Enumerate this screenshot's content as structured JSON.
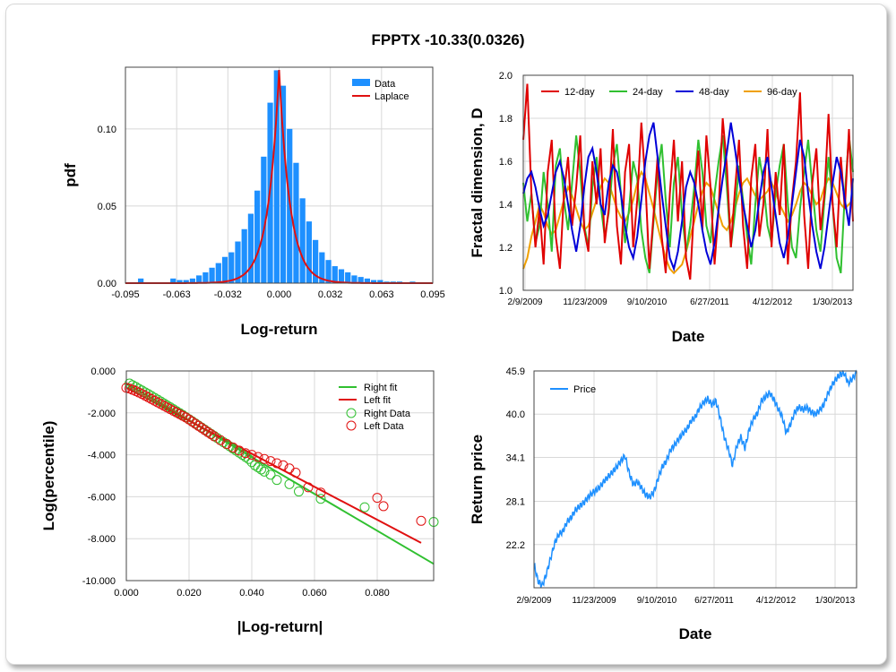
{
  "title": "FPPTX -10.33(0.0326)",
  "colors": {
    "data_bar": "#1e90ff",
    "laplace": "#e01010",
    "d12": "#e00000",
    "d24": "#30c030",
    "d48": "#0000d8",
    "d96": "#f0a000",
    "right": "#30c030",
    "left": "#e01010",
    "price": "#1e90ff",
    "grid": "#d8d8d8"
  },
  "chart_data": [
    {
      "id": "hist",
      "type": "bar",
      "xlabel": "Log-return",
      "ylabel": "pdf",
      "xlim": [
        -0.095,
        0.095
      ],
      "ylim": [
        0,
        0.14
      ],
      "xticks": [
        "-0.095",
        "-0.063",
        "-0.032",
        "0.000",
        "0.032",
        "0.063",
        "0.095"
      ],
      "yticks": [
        "0.00",
        "0.05",
        "0.10"
      ],
      "legend": [
        "Data",
        "Laplace"
      ],
      "legend_position": "top-right",
      "bin_centers": [
        -0.0855,
        -0.0815,
        -0.0775,
        -0.0735,
        -0.0695,
        -0.0655,
        -0.0615,
        -0.0575,
        -0.0535,
        -0.0495,
        -0.0455,
        -0.0415,
        -0.0375,
        -0.0335,
        -0.0295,
        -0.0255,
        -0.0215,
        -0.0175,
        -0.0135,
        -0.0095,
        -0.0055,
        -0.0015,
        0.0025,
        0.0065,
        0.0105,
        0.0145,
        0.0185,
        0.0225,
        0.0265,
        0.0305,
        0.0345,
        0.0385,
        0.0425,
        0.0465,
        0.0505,
        0.0545,
        0.0585,
        0.0625,
        0.0665,
        0.0705,
        0.0745,
        0.0785,
        0.0825
      ],
      "values": [
        0.003,
        0.0,
        0.0,
        0.0,
        0.0,
        0.003,
        0.002,
        0.002,
        0.003,
        0.005,
        0.007,
        0.01,
        0.013,
        0.017,
        0.02,
        0.027,
        0.035,
        0.045,
        0.06,
        0.082,
        0.117,
        0.138,
        0.128,
        0.1,
        0.078,
        0.055,
        0.04,
        0.028,
        0.02,
        0.015,
        0.011,
        0.009,
        0.007,
        0.005,
        0.004,
        0.003,
        0.002,
        0.002,
        0.001,
        0.001,
        0.001,
        0.0,
        0.001
      ],
      "laplace_center": 0.0,
      "laplace_scale": 0.0068
    },
    {
      "id": "fractal",
      "type": "line",
      "xlabel": "Date",
      "ylabel": "Fractal dimension, D",
      "ylim": [
        1.0,
        2.0
      ],
      "yticks": [
        "1.0",
        "1.2",
        "1.4",
        "1.6",
        "1.8",
        "2.0"
      ],
      "xticks": [
        "2/9/2009",
        "11/23/2009",
        "9/10/2010",
        "6/27/2011",
        "4/12/2012",
        "1/30/2013"
      ],
      "legend": [
        "12-day",
        "24-day",
        "48-day",
        "96-day"
      ],
      "legend_position": "top",
      "series": [
        {
          "name": "12-day",
          "values": [
            1.7,
            1.96,
            1.45,
            1.2,
            1.38,
            1.12,
            1.55,
            1.7,
            1.25,
            1.1,
            1.45,
            1.62,
            1.3,
            1.48,
            1.72,
            1.28,
            1.18,
            1.6,
            1.4,
            1.66,
            1.22,
            1.38,
            1.75,
            1.3,
            1.12,
            1.55,
            1.68,
            1.2,
            1.42,
            1.78,
            1.5,
            1.1,
            1.35,
            1.62,
            1.25,
            1.08,
            1.45,
            1.7,
            1.32,
            1.6,
            1.15,
            1.05,
            1.4,
            1.65,
            1.28,
            1.72,
            1.48,
            1.12,
            1.38,
            1.8,
            1.58,
            1.2,
            1.46,
            1.7,
            1.3,
            1.1,
            1.52,
            1.68,
            1.25,
            1.4,
            1.75,
            1.2,
            1.55,
            1.35,
            1.68,
            1.12,
            1.42,
            1.6,
            1.92,
            1.35,
            1.1,
            1.5,
            1.66,
            1.28,
            1.45,
            1.82,
            1.4,
            1.2,
            1.62,
            1.38,
            1.75,
            1.32
          ]
        },
        {
          "name": "24-day",
          "values": [
            1.5,
            1.32,
            1.45,
            1.22,
            1.3,
            1.55,
            1.4,
            1.18,
            1.58,
            1.66,
            1.42,
            1.28,
            1.5,
            1.72,
            1.55,
            1.3,
            1.2,
            1.48,
            1.62,
            1.4,
            1.25,
            1.36,
            1.58,
            1.68,
            1.45,
            1.22,
            1.38,
            1.6,
            1.52,
            1.28,
            1.15,
            1.08,
            1.32,
            1.55,
            1.68,
            1.42,
            1.2,
            1.5,
            1.62,
            1.35,
            1.18,
            1.3,
            1.48,
            1.7,
            1.55,
            1.3,
            1.22,
            1.45,
            1.6,
            1.72,
            1.48,
            1.2,
            1.36,
            1.58,
            1.42,
            1.25,
            1.12,
            1.4,
            1.62,
            1.5,
            1.3,
            1.22,
            1.45,
            1.58,
            1.68,
            1.4,
            1.2,
            1.15,
            1.38,
            1.55,
            1.7,
            1.48,
            1.28,
            1.18,
            1.42,
            1.62,
            1.4,
            1.15,
            1.08,
            1.45,
            1.72,
            1.55
          ]
        },
        {
          "name": "48-day",
          "values": [
            1.45,
            1.52,
            1.55,
            1.48,
            1.38,
            1.3,
            1.35,
            1.45,
            1.55,
            1.6,
            1.52,
            1.4,
            1.28,
            1.18,
            1.3,
            1.48,
            1.62,
            1.66,
            1.55,
            1.4,
            1.35,
            1.5,
            1.58,
            1.55,
            1.45,
            1.3,
            1.2,
            1.15,
            1.25,
            1.42,
            1.6,
            1.72,
            1.78,
            1.62,
            1.45,
            1.3,
            1.15,
            1.1,
            1.18,
            1.32,
            1.48,
            1.55,
            1.5,
            1.4,
            1.28,
            1.18,
            1.12,
            1.22,
            1.38,
            1.52,
            1.64,
            1.78,
            1.66,
            1.52,
            1.4,
            1.3,
            1.2,
            1.28,
            1.42,
            1.55,
            1.62,
            1.48,
            1.35,
            1.22,
            1.15,
            1.25,
            1.4,
            1.55,
            1.7,
            1.62,
            1.45,
            1.3,
            1.18,
            1.1,
            1.2,
            1.35,
            1.5,
            1.62,
            1.55,
            1.42,
            1.3,
            1.52
          ]
        },
        {
          "name": "96-day",
          "values": [
            1.1,
            1.15,
            1.25,
            1.32,
            1.4,
            1.36,
            1.3,
            1.26,
            1.28,
            1.35,
            1.42,
            1.48,
            1.44,
            1.38,
            1.32,
            1.28,
            1.3,
            1.36,
            1.42,
            1.48,
            1.52,
            1.5,
            1.44,
            1.38,
            1.34,
            1.32,
            1.36,
            1.42,
            1.5,
            1.55,
            1.52,
            1.45,
            1.38,
            1.3,
            1.22,
            1.15,
            1.1,
            1.08,
            1.1,
            1.12,
            1.18,
            1.25,
            1.32,
            1.4,
            1.46,
            1.5,
            1.48,
            1.42,
            1.36,
            1.3,
            1.28,
            1.32,
            1.38,
            1.45,
            1.5,
            1.52,
            1.48,
            1.44,
            1.42,
            1.44,
            1.46,
            1.5,
            1.46,
            1.4,
            1.36,
            1.32,
            1.35,
            1.4,
            1.46,
            1.5,
            1.48,
            1.44,
            1.4,
            1.42,
            1.48,
            1.52,
            1.5,
            1.45,
            1.4,
            1.38,
            1.4,
            1.42
          ]
        }
      ]
    },
    {
      "id": "tail",
      "type": "scatter",
      "xlabel": "|Log-return|",
      "ylabel": "Log(percentile)",
      "xlim": [
        0,
        0.098
      ],
      "ylim": [
        -10,
        0
      ],
      "xticks": [
        "0.000",
        "0.020",
        "0.040",
        "0.060",
        "0.080"
      ],
      "yticks": [
        "0.000",
        "-2.000",
        "-4.000",
        "-6.000",
        "-8.000",
        "-10.000"
      ],
      "legend": [
        "Right fit",
        "Left fit",
        "Right Data",
        "Left Data"
      ],
      "legend_position": "top-right",
      "right_fit": {
        "x": [
          0,
          0.098
        ],
        "y": [
          -0.6,
          -9.2
        ]
      },
      "left_fit": {
        "x": [
          0,
          0.094
        ],
        "y": [
          -0.8,
          -8.2
        ]
      },
      "right_data": {
        "x": [
          0.001,
          0.002,
          0.003,
          0.004,
          0.005,
          0.006,
          0.007,
          0.008,
          0.009,
          0.01,
          0.011,
          0.012,
          0.013,
          0.014,
          0.015,
          0.016,
          0.017,
          0.018,
          0.019,
          0.02,
          0.021,
          0.022,
          0.023,
          0.024,
          0.025,
          0.026,
          0.027,
          0.028,
          0.029,
          0.03,
          0.031,
          0.032,
          0.033,
          0.034,
          0.035,
          0.036,
          0.037,
          0.038,
          0.039,
          0.04,
          0.041,
          0.042,
          0.043,
          0.044,
          0.046,
          0.048,
          0.052,
          0.055,
          0.062,
          0.076,
          0.098
        ],
        "y": [
          -0.6,
          -0.68,
          -0.76,
          -0.85,
          -0.93,
          -1.02,
          -1.1,
          -1.19,
          -1.28,
          -1.37,
          -1.46,
          -1.55,
          -1.64,
          -1.73,
          -1.82,
          -1.92,
          -2.01,
          -2.1,
          -2.2,
          -2.3,
          -2.4,
          -2.5,
          -2.6,
          -2.7,
          -2.8,
          -2.9,
          -3.0,
          -3.1,
          -3.2,
          -3.3,
          -3.4,
          -3.5,
          -3.6,
          -3.7,
          -3.8,
          -3.9,
          -4.0,
          -4.1,
          -4.2,
          -4.35,
          -4.5,
          -4.6,
          -4.7,
          -4.8,
          -4.95,
          -5.2,
          -5.4,
          -5.75,
          -6.1,
          -6.5,
          -7.2
        ]
      },
      "left_data": {
        "x": [
          0.0,
          0.001,
          0.002,
          0.003,
          0.004,
          0.005,
          0.006,
          0.007,
          0.008,
          0.009,
          0.01,
          0.011,
          0.012,
          0.013,
          0.014,
          0.015,
          0.016,
          0.017,
          0.018,
          0.019,
          0.02,
          0.021,
          0.022,
          0.023,
          0.024,
          0.025,
          0.026,
          0.027,
          0.028,
          0.03,
          0.032,
          0.034,
          0.036,
          0.038,
          0.04,
          0.042,
          0.044,
          0.046,
          0.048,
          0.05,
          0.052,
          0.054,
          0.058,
          0.062,
          0.08,
          0.082,
          0.094
        ],
        "y": [
          -0.8,
          -0.84,
          -0.9,
          -0.96,
          -1.03,
          -1.1,
          -1.18,
          -1.26,
          -1.34,
          -1.42,
          -1.5,
          -1.58,
          -1.66,
          -1.74,
          -1.82,
          -1.9,
          -1.98,
          -2.06,
          -2.14,
          -2.22,
          -2.32,
          -2.42,
          -2.52,
          -2.62,
          -2.72,
          -2.82,
          -2.92,
          -3.02,
          -3.12,
          -3.3,
          -3.48,
          -3.65,
          -3.8,
          -3.92,
          -4.0,
          -4.1,
          -4.2,
          -4.3,
          -4.4,
          -4.5,
          -4.65,
          -4.85,
          -5.55,
          -5.8,
          -6.05,
          -6.45,
          -7.15
        ]
      }
    },
    {
      "id": "price",
      "type": "line",
      "xlabel": "Date",
      "ylabel": "Return price",
      "ylim": [
        16.3,
        45.9
      ],
      "yticks": [
        "22.2",
        "28.1",
        "34.1",
        "40.0",
        "45.9"
      ],
      "xticks": [
        "2/9/2009",
        "11/23/2009",
        "9/10/2010",
        "6/27/2011",
        "4/12/2012",
        "1/30/2013"
      ],
      "legend": [
        "Price"
      ],
      "legend_position": "top-left",
      "series": [
        {
          "name": "Price",
          "values": [
            19.5,
            17.2,
            16.6,
            18.2,
            20.3,
            22.4,
            23.6,
            24.0,
            25.3,
            25.9,
            26.9,
            27.4,
            27.9,
            28.6,
            29.2,
            29.6,
            30.1,
            30.9,
            31.5,
            32.1,
            32.8,
            33.6,
            34.3,
            32.0,
            30.4,
            30.8,
            29.9,
            29.0,
            28.7,
            29.4,
            31.2,
            32.8,
            33.6,
            35.1,
            35.8,
            36.6,
            37.4,
            38.0,
            39.1,
            39.6,
            40.8,
            41.6,
            42.1,
            41.3,
            41.8,
            39.5,
            36.9,
            35.2,
            33.0,
            35.6,
            36.9,
            35.4,
            37.8,
            39.3,
            40.1,
            41.8,
            42.4,
            42.9,
            42.0,
            40.8,
            39.7,
            37.4,
            38.6,
            40.2,
            41.0,
            40.6,
            40.9,
            40.3,
            40.0,
            40.5,
            41.2,
            42.7,
            43.9,
            44.8,
            45.4,
            45.6,
            44.2,
            44.9,
            45.6
          ]
        }
      ]
    }
  ]
}
